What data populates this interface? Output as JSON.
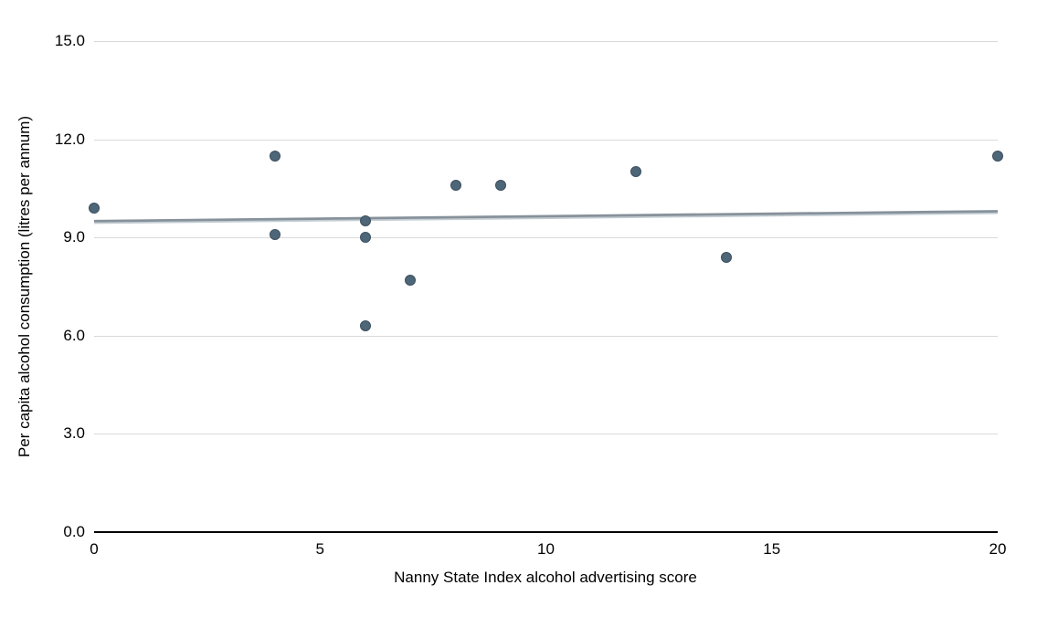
{
  "chart_data": {
    "type": "scatter",
    "xlabel": "Nanny State Index alcohol advertising score",
    "ylabel": "Per capita alcohol consumption (litres per annum)",
    "xlim": [
      0,
      20
    ],
    "ylim": [
      0,
      15
    ],
    "grid": "horizontal-only",
    "legend": "none",
    "x_ticks": [
      {
        "value": 0,
        "label": "0"
      },
      {
        "value": 5,
        "label": "5"
      },
      {
        "value": 10,
        "label": "10"
      },
      {
        "value": 15,
        "label": "15"
      },
      {
        "value": 20,
        "label": "20"
      }
    ],
    "y_ticks": [
      {
        "value": 0,
        "label": "0.0"
      },
      {
        "value": 3,
        "label": "3.0"
      },
      {
        "value": 6,
        "label": "6.0"
      },
      {
        "value": 9,
        "label": "9.0"
      },
      {
        "value": 12,
        "label": "12.0"
      },
      {
        "value": 15,
        "label": "15.0"
      }
    ],
    "points": [
      {
        "x": 0,
        "y": 9.9
      },
      {
        "x": 4,
        "y": 11.5
      },
      {
        "x": 4,
        "y": 9.1
      },
      {
        "x": 6,
        "y": 9.5
      },
      {
        "x": 6,
        "y": 9.0
      },
      {
        "x": 6,
        "y": 6.3
      },
      {
        "x": 7,
        "y": 7.7
      },
      {
        "x": 8,
        "y": 10.6
      },
      {
        "x": 9,
        "y": 10.6
      },
      {
        "x": 12,
        "y": 11.0
      },
      {
        "x": 14,
        "y": 8.4
      },
      {
        "x": 20,
        "y": 11.5
      }
    ],
    "trendline": {
      "x1": 0,
      "y1": 9.5,
      "x2": 20,
      "y2": 9.8
    },
    "colors": {
      "point_fill": "#4d6678",
      "point_border": "#3c4f5e",
      "trend": "#87919a",
      "trend_highlight": "#c3cdd3",
      "gridline": "#d9d9d9",
      "axis": "#000000",
      "text": "#000000",
      "background": "#ffffff"
    }
  }
}
